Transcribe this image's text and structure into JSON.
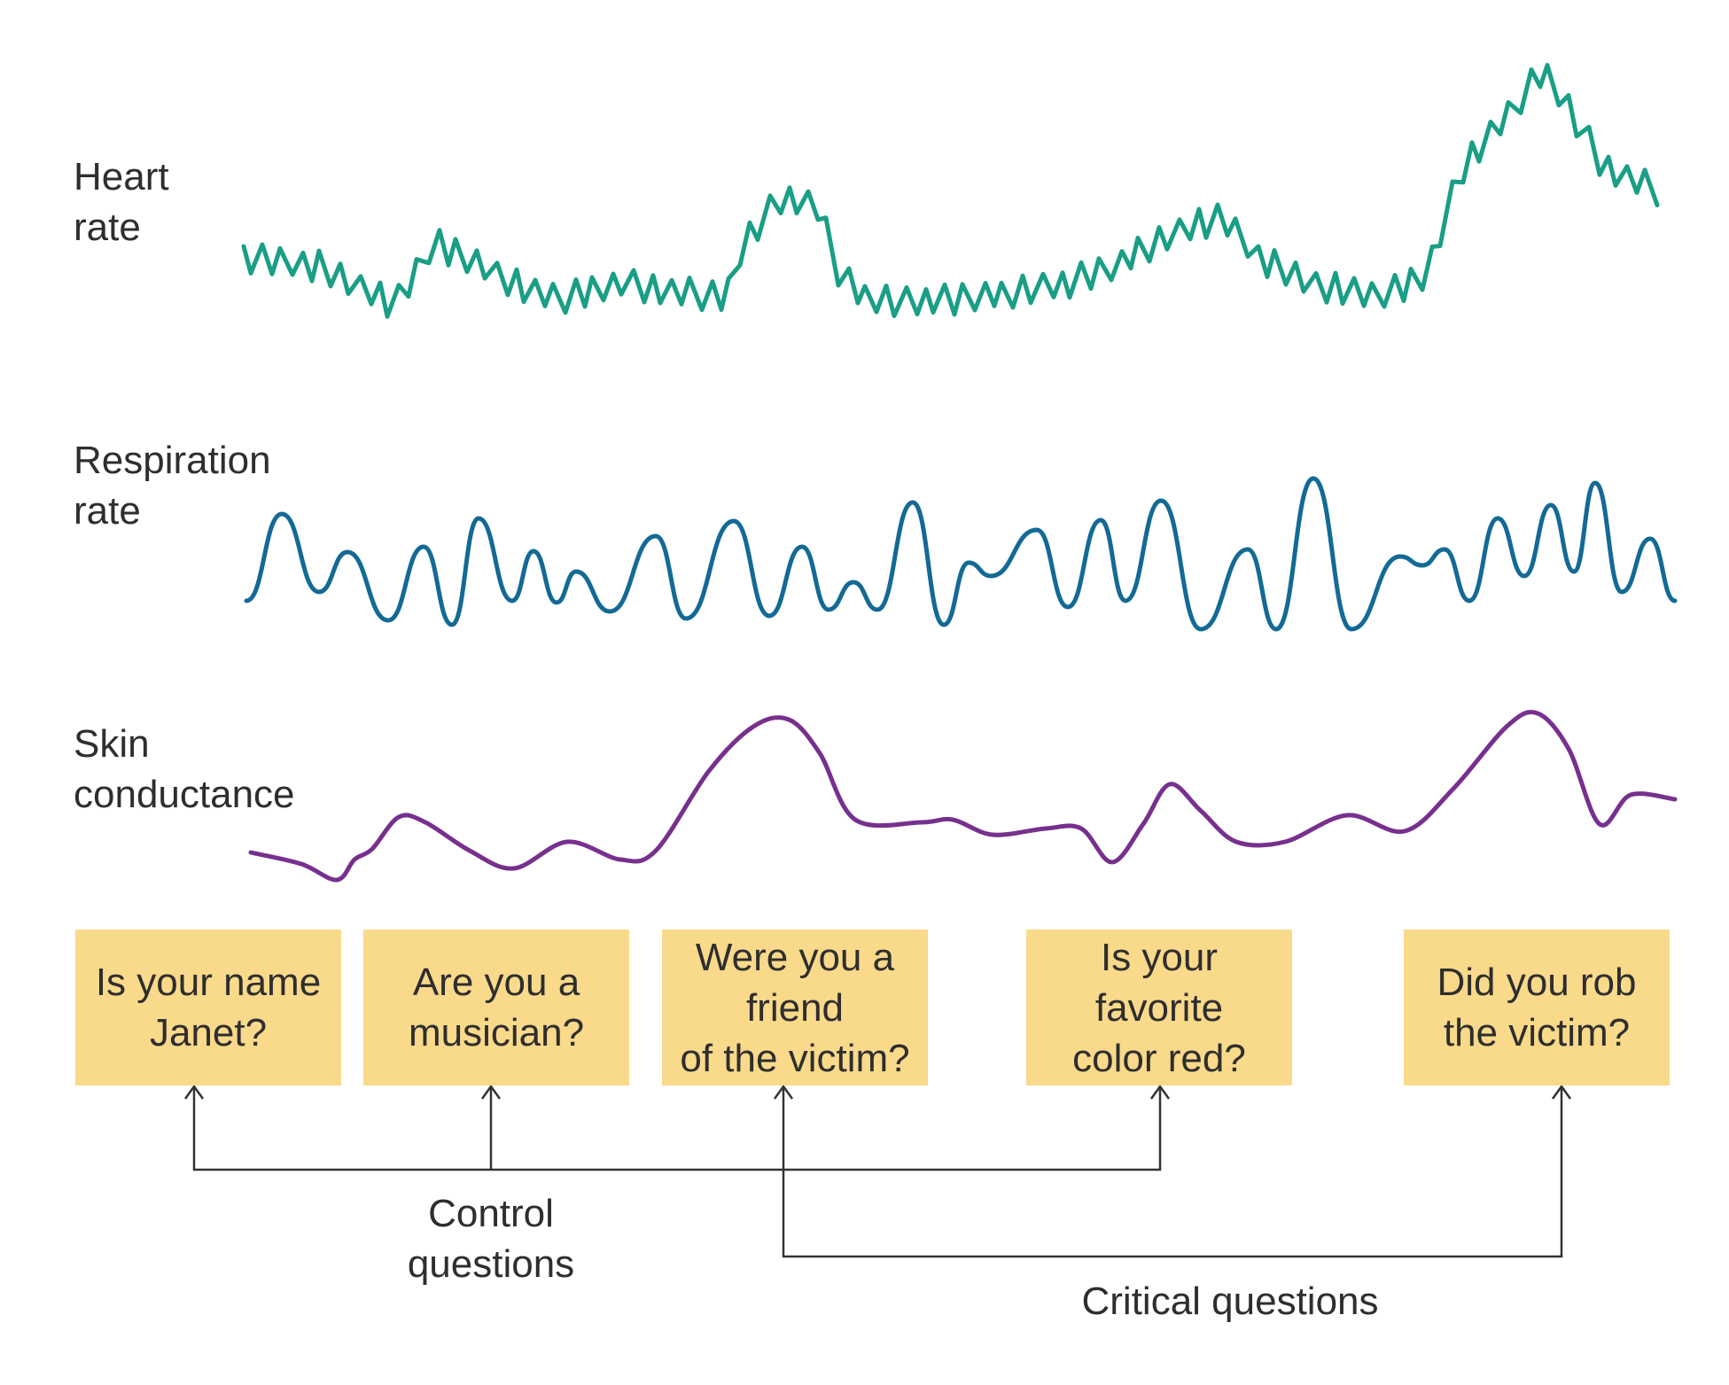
{
  "signals": [
    {
      "name": "heart-rate",
      "label": "Heart\nrate",
      "color": "#1a9e86"
    },
    {
      "name": "respiration-rate",
      "label": "Respiration\nrate",
      "color": "#136a94"
    },
    {
      "name": "skin-conductance",
      "label": "Skin\nconductance",
      "color": "#77308e"
    }
  ],
  "questions": [
    {
      "text": "Is your name\nJanet?",
      "type": "control"
    },
    {
      "text": "Are you a\nmusician?",
      "type": "control"
    },
    {
      "text": "Were you a\nfriend\nof the victim?",
      "type": "critical"
    },
    {
      "text": "Is your\nfavorite\ncolor red?",
      "type": "control"
    },
    {
      "text": "Did you rob\nthe victim?",
      "type": "critical"
    }
  ],
  "groups": {
    "control": "Control\nquestions",
    "critical": "Critical questions"
  },
  "colors": {
    "box": "#f9d98a",
    "connector": "#333333",
    "text": "#2e2e2e"
  }
}
